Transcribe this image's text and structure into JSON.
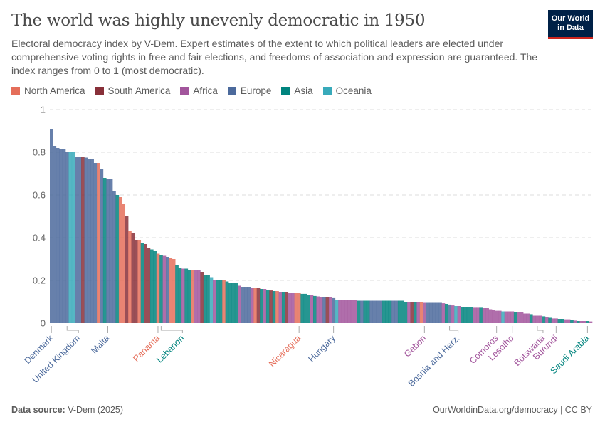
{
  "header": {
    "title": "The world was highly unevenly democratic in 1950",
    "subtitle": "Electoral democracy index by V-Dem. Expert estimates of the extent to which political leaders are elected under comprehensive voting rights in free and fair elections, and freedoms of association and expression are guaranteed. The index ranges from 0 to 1 (most democratic).",
    "logo_line1": "Our World",
    "logo_line2": "in Data"
  },
  "legend": [
    {
      "code": "NA",
      "label": "North America",
      "color": "#E56E5A"
    },
    {
      "code": "SA",
      "label": "South America",
      "color": "#883039"
    },
    {
      "code": "AF",
      "label": "Africa",
      "color": "#A2559C"
    },
    {
      "code": "EU",
      "label": "Europe",
      "color": "#4C6A9C"
    },
    {
      "code": "AS",
      "label": "Asia",
      "color": "#00847E"
    },
    {
      "code": "OC",
      "label": "Oceania",
      "color": "#38AABA"
    }
  ],
  "footer": {
    "source_label": "Data source:",
    "source": "V-Dem (2025)",
    "right": "OurWorldinData.org/democracy | CC BY"
  },
  "chart_data": {
    "type": "bar",
    "title": "The world was highly unevenly democratic in 1950",
    "ylim": [
      0,
      1
    ],
    "yticks": [
      "0",
      "0.2",
      "0.4",
      "0.6",
      "0.8",
      "1"
    ],
    "grid": true,
    "legend_position": "top-left",
    "bars": [
      {
        "r": "EU",
        "v": 0.91,
        "label": "Denmark"
      },
      {
        "r": "EU",
        "v": 0.83
      },
      {
        "r": "EU",
        "v": 0.82
      },
      {
        "r": "EU",
        "v": 0.815
      },
      {
        "r": "EU",
        "v": 0.815
      },
      {
        "r": "EU",
        "v": 0.8,
        "label": "United Kingdom"
      },
      {
        "r": "OC",
        "v": 0.8
      },
      {
        "r": "OC",
        "v": 0.8
      },
      {
        "r": "EU",
        "v": 0.78
      },
      {
        "r": "EU",
        "v": 0.78
      },
      {
        "r": "SA",
        "v": 0.78
      },
      {
        "r": "EU",
        "v": 0.775
      },
      {
        "r": "EU",
        "v": 0.77
      },
      {
        "r": "EU",
        "v": 0.77
      },
      {
        "r": "EU",
        "v": 0.75
      },
      {
        "r": "NA",
        "v": 0.75
      },
      {
        "r": "EU",
        "v": 0.72
      },
      {
        "r": "AS",
        "v": 0.68
      },
      {
        "r": "EU",
        "v": 0.675,
        "label": "Malta"
      },
      {
        "r": "EU",
        "v": 0.675
      },
      {
        "r": "EU",
        "v": 0.62
      },
      {
        "r": "AS",
        "v": 0.6
      },
      {
        "r": "NA",
        "v": 0.59
      },
      {
        "r": "NA",
        "v": 0.56
      },
      {
        "r": "SA",
        "v": 0.5
      },
      {
        "r": "NA",
        "v": 0.43
      },
      {
        "r": "SA",
        "v": 0.42
      },
      {
        "r": "SA",
        "v": 0.39
      },
      {
        "r": "NA",
        "v": 0.39
      },
      {
        "r": "AS",
        "v": 0.375
      },
      {
        "r": "SA",
        "v": 0.37
      },
      {
        "r": "SA",
        "v": 0.35
      },
      {
        "r": "AS",
        "v": 0.345
      },
      {
        "r": "AS",
        "v": 0.34
      },
      {
        "r": "NA",
        "v": 0.325,
        "label": "Panama"
      },
      {
        "r": "AS",
        "v": 0.32,
        "label": "Lebanon"
      },
      {
        "r": "AF",
        "v": 0.315
      },
      {
        "r": "EU",
        "v": 0.31
      },
      {
        "r": "NA",
        "v": 0.305
      },
      {
        "r": "NA",
        "v": 0.3
      },
      {
        "r": "AS",
        "v": 0.27
      },
      {
        "r": "AS",
        "v": 0.26
      },
      {
        "r": "AF",
        "v": 0.255
      },
      {
        "r": "AS",
        "v": 0.255
      },
      {
        "r": "AS",
        "v": 0.25
      },
      {
        "r": "NA",
        "v": 0.25
      },
      {
        "r": "AF",
        "v": 0.248
      },
      {
        "r": "AF",
        "v": 0.248
      },
      {
        "r": "SA",
        "v": 0.24
      },
      {
        "r": "AS",
        "v": 0.225
      },
      {
        "r": "AS",
        "v": 0.225
      },
      {
        "r": "OC",
        "v": 0.215
      },
      {
        "r": "AF",
        "v": 0.2
      },
      {
        "r": "AS",
        "v": 0.2
      },
      {
        "r": "AS",
        "v": 0.2
      },
      {
        "r": "NA",
        "v": 0.2
      },
      {
        "r": "AS",
        "v": 0.195
      },
      {
        "r": "AS",
        "v": 0.19
      },
      {
        "r": "AS",
        "v": 0.188
      },
      {
        "r": "AS",
        "v": 0.188
      },
      {
        "r": "AF",
        "v": 0.175
      },
      {
        "r": "EU",
        "v": 0.17
      },
      {
        "r": "EU",
        "v": 0.17
      },
      {
        "r": "EU",
        "v": 0.17
      },
      {
        "r": "AF",
        "v": 0.165
      },
      {
        "r": "NA",
        "v": 0.165
      },
      {
        "r": "SA",
        "v": 0.165
      },
      {
        "r": "AS",
        "v": 0.16
      },
      {
        "r": "AF",
        "v": 0.16
      },
      {
        "r": "AS",
        "v": 0.155
      },
      {
        "r": "SA",
        "v": 0.153
      },
      {
        "r": "AS",
        "v": 0.15
      },
      {
        "r": "NA",
        "v": 0.15
      },
      {
        "r": "AF",
        "v": 0.145
      },
      {
        "r": "AS",
        "v": 0.145
      },
      {
        "r": "SA",
        "v": 0.145
      },
      {
        "r": "AF",
        "v": 0.14
      },
      {
        "r": "AF",
        "v": 0.14
      },
      {
        "r": "NA",
        "v": 0.14
      },
      {
        "r": "NA",
        "v": 0.14,
        "label": "Nicaragua"
      },
      {
        "r": "AS",
        "v": 0.137
      },
      {
        "r": "AS",
        "v": 0.137
      },
      {
        "r": "AS",
        "v": 0.13
      },
      {
        "r": "AF",
        "v": 0.13
      },
      {
        "r": "AS",
        "v": 0.127
      },
      {
        "r": "AF",
        "v": 0.125
      },
      {
        "r": "AF",
        "v": 0.12
      },
      {
        "r": "EU",
        "v": 0.12
      },
      {
        "r": "SA",
        "v": 0.12
      },
      {
        "r": "AF",
        "v": 0.12
      },
      {
        "r": "EU",
        "v": 0.117,
        "label": "Hungary"
      },
      {
        "r": "OC",
        "v": 0.11
      },
      {
        "r": "AF",
        "v": 0.11
      },
      {
        "r": "AF",
        "v": 0.11
      },
      {
        "r": "AF",
        "v": 0.11
      },
      {
        "r": "AF",
        "v": 0.11
      },
      {
        "r": "AF",
        "v": 0.11
      },
      {
        "r": "AF",
        "v": 0.11
      },
      {
        "r": "AS",
        "v": 0.105
      },
      {
        "r": "EU",
        "v": 0.105
      },
      {
        "r": "AS",
        "v": 0.105
      },
      {
        "r": "AS",
        "v": 0.105
      },
      {
        "r": "EU",
        "v": 0.105
      },
      {
        "r": "EU",
        "v": 0.105
      },
      {
        "r": "EU",
        "v": 0.105
      },
      {
        "r": "EU",
        "v": 0.105
      },
      {
        "r": "AS",
        "v": 0.105
      },
      {
        "r": "AS",
        "v": 0.105
      },
      {
        "r": "AS",
        "v": 0.105
      },
      {
        "r": "EU",
        "v": 0.105
      },
      {
        "r": "EU",
        "v": 0.105
      },
      {
        "r": "AS",
        "v": 0.105
      },
      {
        "r": "AS",
        "v": 0.105
      },
      {
        "r": "AS",
        "v": 0.1
      },
      {
        "r": "AF",
        "v": 0.1
      },
      {
        "r": "SA",
        "v": 0.098
      },
      {
        "r": "AS",
        "v": 0.098
      },
      {
        "r": "AF",
        "v": 0.098
      },
      {
        "r": "NA",
        "v": 0.098
      },
      {
        "r": "AF",
        "v": 0.095,
        "label": "Gabon"
      },
      {
        "r": "EU",
        "v": 0.095
      },
      {
        "r": "EU",
        "v": 0.095
      },
      {
        "r": "EU",
        "v": 0.095
      },
      {
        "r": "EU",
        "v": 0.095
      },
      {
        "r": "EU",
        "v": 0.095
      },
      {
        "r": "AF",
        "v": 0.093
      },
      {
        "r": "AS",
        "v": 0.09
      },
      {
        "r": "EU",
        "v": 0.087,
        "label": "Bosnia and Herz."
      },
      {
        "r": "AF",
        "v": 0.083
      },
      {
        "r": "OC",
        "v": 0.08
      },
      {
        "r": "AF",
        "v": 0.08
      },
      {
        "r": "AS",
        "v": 0.075
      },
      {
        "r": "AS",
        "v": 0.075
      },
      {
        "r": "AS",
        "v": 0.075
      },
      {
        "r": "AS",
        "v": 0.075
      },
      {
        "r": "AF",
        "v": 0.072
      },
      {
        "r": "AF",
        "v": 0.072
      },
      {
        "r": "AS",
        "v": 0.072
      },
      {
        "r": "AF",
        "v": 0.07
      },
      {
        "r": "AF",
        "v": 0.07
      },
      {
        "r": "AF",
        "v": 0.065
      },
      {
        "r": "AF",
        "v": 0.06
      },
      {
        "r": "AF",
        "v": 0.058,
        "label": "Comoros"
      },
      {
        "r": "AF",
        "v": 0.058
      },
      {
        "r": "OC",
        "v": 0.055
      },
      {
        "r": "AF",
        "v": 0.055
      },
      {
        "r": "AF",
        "v": 0.055
      },
      {
        "r": "AF",
        "v": 0.055,
        "label": "Lesotho"
      },
      {
        "r": "AS",
        "v": 0.053
      },
      {
        "r": "AF",
        "v": 0.052
      },
      {
        "r": "AF",
        "v": 0.052
      },
      {
        "r": "AF",
        "v": 0.045
      },
      {
        "r": "AF",
        "v": 0.045
      },
      {
        "r": "AS",
        "v": 0.042
      },
      {
        "r": "AF",
        "v": 0.035
      },
      {
        "r": "AF",
        "v": 0.035,
        "label": "Botswana"
      },
      {
        "r": "AF",
        "v": 0.035
      },
      {
        "r": "AS",
        "v": 0.032
      },
      {
        "r": "AF",
        "v": 0.028
      },
      {
        "r": "AS",
        "v": 0.025
      },
      {
        "r": "AF",
        "v": 0.022
      },
      {
        "r": "AF",
        "v": 0.022,
        "label": "Burundi"
      },
      {
        "r": "AS",
        "v": 0.02
      },
      {
        "r": "AS",
        "v": 0.02
      },
      {
        "r": "AF",
        "v": 0.018
      },
      {
        "r": "AF",
        "v": 0.018
      },
      {
        "r": "AS",
        "v": 0.015
      },
      {
        "r": "AF",
        "v": 0.012
      },
      {
        "r": "AS",
        "v": 0.01
      },
      {
        "r": "AF",
        "v": 0.01
      },
      {
        "r": "AF",
        "v": 0.01
      },
      {
        "r": "AS",
        "v": 0.01,
        "label": "Saudi Arabia"
      },
      {
        "r": "AF",
        "v": 0.008
      }
    ]
  }
}
